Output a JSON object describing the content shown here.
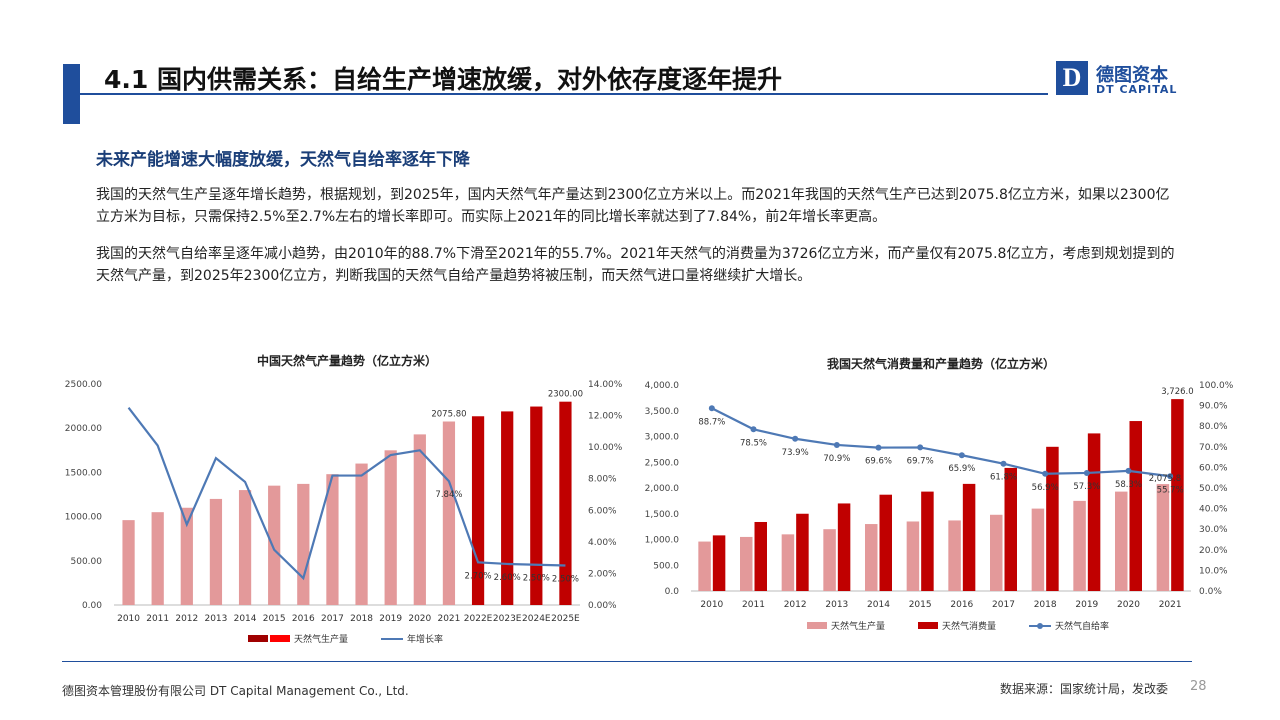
{
  "header": {
    "title": "4.1 国内供需关系：自给生产增速放缓，对外依存度逐年提升",
    "logo_mark": "D",
    "logo_cn": "德图资本",
    "logo_en": "DT CAPITAL",
    "brand_color": "#1f4e9c"
  },
  "content": {
    "subtitle": "未来产能增速大幅度放缓，天然气自给率逐年下降",
    "paragraph1": "我国的天然气生产呈逐年增长趋势，根据规划，到2025年，国内天然气年产量达到2300亿立方米以上。而2021年我国的天然气生产已达到2075.8亿立方米，如果以2300亿立方米为目标，只需保持2.5%至2.7%左右的增长率即可。而实际上2021年的同比增长率就达到了7.84%，前2年增长率更高。",
    "paragraph2": "我国的天然气自给率呈逐年减小趋势，由2010年的88.7%下滑至2021年的55.7%。2021年天然气的消费量为3726亿立方米，而产量仅有2075.8亿立方，考虑到规划提到的天然气产量，到2025年2300亿立方，判断我国的天然气自给产量趋势将被压制，而天然气进口量将继续扩大增长。"
  },
  "footer": {
    "company": "德图资本管理股份有限公司  DT Capital Management  Co., Ltd.",
    "source": "数据来源：国家统计局，发改委",
    "page": "28"
  },
  "chart_data": [
    {
      "type": "bar",
      "title": "中国天然气产量趋势（亿立方米）",
      "categories": [
        "2010",
        "2011",
        "2012",
        "2013",
        "2014",
        "2015",
        "2016",
        "2017",
        "2018",
        "2019",
        "2020",
        "2021",
        "2022E",
        "2023E",
        "2024E",
        "2025E"
      ],
      "ylim": [
        0,
        2500
      ],
      "yticks": [
        "0.00",
        "500.00",
        "1000.00",
        "1500.00",
        "2000.00",
        "2500.00"
      ],
      "y2lim": [
        0,
        14
      ],
      "y2ticks": [
        "0.00%",
        "2.00%",
        "4.00%",
        "6.00%",
        "8.00%",
        "10.00%",
        "12.00%",
        "14.00%"
      ],
      "series": [
        {
          "name": "天然气生产量",
          "kind": "bar",
          "values": [
            960,
            1050,
            1100,
            1200,
            1300,
            1350,
            1370,
            1480,
            1600,
            1750,
            1930,
            2075.8,
            2135,
            2190,
            2245,
            2300
          ],
          "colors": [
            "#e3999a",
            "#e3999a",
            "#e3999a",
            "#e3999a",
            "#e3999a",
            "#e3999a",
            "#e3999a",
            "#e3999a",
            "#e3999a",
            "#e3999a",
            "#e3999a",
            "#e3999a",
            "#c00000",
            "#c00000",
            "#c00000",
            "#c00000"
          ]
        },
        {
          "name": "年增长率",
          "kind": "line",
          "axis": "right",
          "color": "#4e79b5",
          "values": [
            12.5,
            10.1,
            5.1,
            9.3,
            7.8,
            3.5,
            1.7,
            8.2,
            8.2,
            9.5,
            9.8,
            7.84,
            2.7,
            2.6,
            2.55,
            2.5
          ]
        }
      ],
      "data_labels": [
        {
          "index": 11,
          "series": 0,
          "text": "2075.80"
        },
        {
          "index": 15,
          "series": 0,
          "text": "2300.00"
        },
        {
          "index": 11,
          "series": 1,
          "text": "7.84%"
        },
        {
          "index": 12,
          "series": 1,
          "text": "2.70%"
        },
        {
          "index": 13,
          "series": 1,
          "text": "2.60%"
        },
        {
          "index": 14,
          "series": 1,
          "text": "2.50%"
        },
        {
          "index": 15,
          "series": 1,
          "text": "2.50%"
        }
      ],
      "legend": [
        {
          "label": "",
          "color": "#a00000"
        },
        {
          "label": "天然气生产量",
          "color": "#ff0000"
        },
        {
          "label": "年增长率",
          "color": "#4e79b5",
          "line": true
        }
      ],
      "legend_position": "bottom",
      "grid": false
    },
    {
      "type": "bar",
      "title": "我国天然气消费量和产量趋势（亿立方米）",
      "categories": [
        "2010",
        "2011",
        "2012",
        "2013",
        "2014",
        "2015",
        "2016",
        "2017",
        "2018",
        "2019",
        "2020",
        "2021"
      ],
      "ylim": [
        0,
        4000
      ],
      "yticks": [
        "0.0",
        "500.0",
        "1,000.0",
        "1,500.0",
        "2,000.0",
        "2,500.0",
        "3,000.0",
        "3,500.0",
        "4,000.0"
      ],
      "y2lim": [
        0,
        100
      ],
      "y2ticks": [
        "0.0%",
        "10.0%",
        "20.0%",
        "30.0%",
        "40.0%",
        "50.0%",
        "60.0%",
        "70.0%",
        "80.0%",
        "90.0%",
        "100.0%"
      ],
      "series": [
        {
          "name": "天然气生产量",
          "kind": "bar",
          "color": "#e3999a",
          "values": [
            960,
            1050,
            1100,
            1200,
            1300,
            1350,
            1370,
            1480,
            1600,
            1750,
            1930,
            2075.8
          ]
        },
        {
          "name": "天然气消费量",
          "kind": "bar",
          "color": "#c00000",
          "values": [
            1080,
            1340,
            1500,
            1700,
            1870,
            1930,
            2080,
            2390,
            2800,
            3060,
            3300,
            3726
          ]
        },
        {
          "name": "天然气自给率",
          "kind": "line",
          "axis": "right",
          "color": "#4e79b5",
          "values": [
            88.7,
            78.5,
            73.9,
            70.9,
            69.6,
            69.7,
            65.9,
            61.8,
            56.9,
            57.3,
            58.3,
            55.7
          ]
        }
      ],
      "data_labels": [
        {
          "index": 0,
          "series": 2,
          "text": "88.7%"
        },
        {
          "index": 1,
          "series": 2,
          "text": "78.5%"
        },
        {
          "index": 2,
          "series": 2,
          "text": "73.9%"
        },
        {
          "index": 3,
          "series": 2,
          "text": "70.9%"
        },
        {
          "index": 4,
          "series": 2,
          "text": "69.6%"
        },
        {
          "index": 5,
          "series": 2,
          "text": "69.7%"
        },
        {
          "index": 6,
          "series": 2,
          "text": "65.9%"
        },
        {
          "index": 7,
          "series": 2,
          "text": "61.8%"
        },
        {
          "index": 8,
          "series": 2,
          "text": "56.9%"
        },
        {
          "index": 9,
          "series": 2,
          "text": "57.3%"
        },
        {
          "index": 10,
          "series": 2,
          "text": "58.3%"
        },
        {
          "index": 11,
          "series": 2,
          "text": "55.7%"
        },
        {
          "index": 11,
          "series": 1,
          "text": "3,726.0"
        },
        {
          "index": 11,
          "series": 0,
          "text": "2,075.8"
        }
      ],
      "legend": [
        {
          "label": "天然气生产量",
          "color": "#e3999a"
        },
        {
          "label": "天然气消费量",
          "color": "#c00000"
        },
        {
          "label": "天然气自给率",
          "color": "#4e79b5",
          "line": true,
          "marker": true
        }
      ],
      "legend_position": "bottom",
      "grid": false
    }
  ]
}
